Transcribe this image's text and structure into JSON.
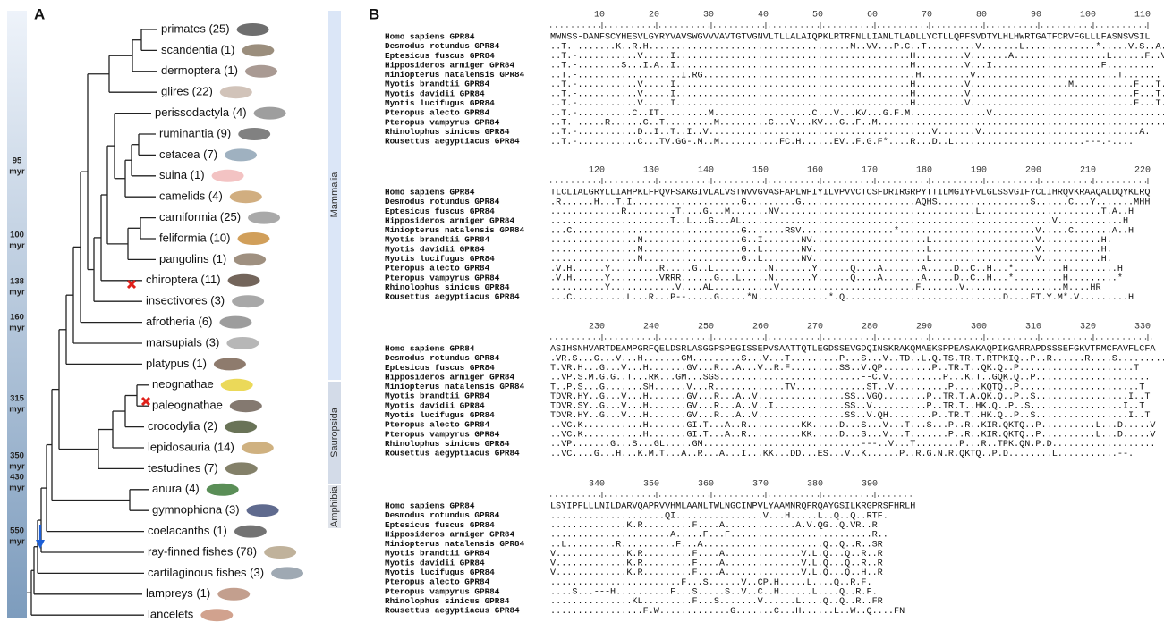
{
  "panel_a": {
    "label": "A",
    "time_labels": [
      [
        "95",
        "myr"
      ],
      [
        "100",
        "myr"
      ],
      [
        "138",
        "myr"
      ],
      [
        "160",
        "myr"
      ],
      [
        "315",
        "myr"
      ],
      [
        "350",
        "myr"
      ],
      [
        "430",
        "myr"
      ],
      [
        "550",
        "myr"
      ]
    ],
    "taxa": [
      "primates (25)",
      "scandentia (1)",
      "dermoptera (1)",
      "glires (22)",
      "perissodactyla (4)",
      "ruminantia (9)",
      "cetacea (7)",
      "suina (1)",
      "camelids (4)",
      "carniformia (25)",
      "feliformia (10)",
      "pangolins (1)",
      "chiroptera (11)",
      "insectivores (3)",
      "afrotheria (6)",
      "marsupials (3)",
      "platypus (1)",
      "neognathae",
      "paleognathae",
      "crocodylia (2)",
      "lepidosauria (14)",
      "testudines (7)",
      "anura (4)",
      "gymnophiona (3)",
      "coelacanths (1)",
      "ray-finned fishes (78)",
      "cartilaginous fishes (3)",
      "lampreys (1)",
      "lancelets"
    ],
    "clades": [
      "Mammalia",
      "Sauropsida",
      "Amphibia"
    ]
  },
  "panel_b": {
    "label": "B",
    "species": [
      "Homo sapiens GPR84",
      "Desmodus rotundus GPR84",
      "Eptesicus fuscus GPR84",
      "Hipposideros armiger GPR84",
      "Miniopterus natalensis GPR84",
      "Myotis brandtii GPR84",
      "Myotis davidii GPR84",
      "Myotis lucifugus GPR84",
      "Pteropus alecto GPR84",
      "Pteropus vampyrus GPR84",
      "Rhinolophus sinicus GPR84",
      "Rousettus aegyptiacus GPR84"
    ],
    "blocks": [
      {
        "ruler": [
          10,
          20,
          30,
          40,
          50,
          60,
          70,
          80,
          90,
          100,
          110
        ],
        "seqs": [
          "MWNSS-DANFSCYHESVLGYRYVAVSWGVVVAVTGTVGNVLTLLALAIQPKLRTRFNLLIANLTLADLLYCTLLQPFSVDTYLHLHWRTGATFCRVFGLLLFASNSVSIL",
          "..T.-.......K..R.H.....................................M..VV...P.C..T.........V.......L.............*.....V.S..A..F.",
          "..T.-...........V.....I...........................................H.........V.......A.................L......F..V",
          "..T.-........S...I.A..I...........................................H.........V...I....................F.........",
          "..T.-...................I.RG.......................................H.........V..........................T.......",
          "..T.-...........V.....I...........................................H.........V..................M...........F...T.",
          "..T.-...........V.....I...........................................H.........V..............................F...T.",
          "..T.-...........V.....I...........................................H.........V..............................F...T.",
          "..T.-..........C..IT.........M..................C...V...KV...G.F.M..............V.....................................",
          "..T.-.....R......C..T.........M.........C...V...KV...G..F..M......................................................",
          "..T.-...........D..I..T..I..V.........................................V.......V.............................A.",
          "..T.-...........C...TV.GG-.M..M...........FC.H......EV..F.G.F*....R...D..L........................---.-...."
        ]
      },
      {
        "ruler": [
          120,
          130,
          140,
          150,
          160,
          170,
          180,
          190,
          200,
          210,
          220
        ],
        "seqs": [
          "TLCLIALGRYLLIAHPKLFPQVFSAKGIVLALVSTWVVGVASFAPLWPIYILVPVVCTCSFDRIRGRPYTTILMGIYFVLGLSSVGIFYCLIHRQVKRAAQALDQYKLRQ",
          ".R......H...T.I....................G.........G.....................AQHS.................S......C...Y.......MHH",
          ".............R.........T....G...M.......NV....................................L......................T.A..H",
          "......................T..L...G...AL.........................................................V............H",
          "...C...............................G.......RSV.................*.........................V.....C.......A..H",
          "................N..................G..I.......NV.....................L...................V...........H.",
          "................N..................G..L.......NV.....................L...................V...........H.",
          "................N..................G..L.......NV.....................L...................V...........H.",
          ".V.H......Y.........R.....G..L..........N.......Y......Q....A.......A.....D..C..H...*.........H.........H",
          ".V.H......Y.........VRRR......G...L.....N.......Y......Q....A.......A.....D..C..H...*.........H.........*",
          "..........Y............V....AL...........V.........................F.......V..................M....HR",
          "...C..........L...R...P--.....G.....*N.............*.Q.............................D....FT.Y.M*.V.........H"
        ]
      },
      {
        "ruler": [
          230,
          240,
          250,
          260,
          270,
          280,
          290,
          300,
          310,
          320,
          330
        ],
        "seqs": [
          "ASIHSNHVARTDEAMPGRFQELDSRLASGGPSPEGISSEPVSAATTQTLEGDSSEVGDQINSKRAKQMAEKSPPEASAKAQPIKGARRAPDSSSEFGKVTRMCFAVFLCFA",
          ".VR.S...G...V...H.......GM.........S...V...T.........P...S...V..TD..L.Q.TS.TR.T.RTPKIQ..P..R......R....S.........",
          "T.VR.H...G...V...H.......GV...R...A...V..R.F.........SS..V.QP.........P..TR.T..QK.Q..P.....................T",
          "..VP.S.M.G.G..T...RK...GM...SGS..........................--C.V..........P...K.T..GQK.Q..P.....................",
          "T..P.S...G.......SH......V...R.............TV.............ST..V..........P.....KQTQ..P......................T",
          "TDVR.HY..G...V...H.......GV...R...A..V................SS..VGQ........P..TR.T.A.QK.Q..P..S.................I..T",
          "TDVR.SY..G...V...H.......GV...R...A..V..I.............SS..V..........P..TR.T..HK.Q..P..S.................I..T",
          "TDVR.HY..G...V...H.......GV...R...A..V................SS..V.QH........P..TR.T..HK.Q..P..S.................I..T",
          "..VC.K...........H.......GI.T...A..R..........KK.....D...S...V...T...S...P..R..KIR.QKTQ..P..........L...D.....V",
          "..VC.K...........H.......GI.T...A..R..........KK.....D...S...V...T.......P..R..KIR.QKTQ..P..........L...D.....V",
          "..VP.......G...S...GL.....GM.............................---..V...T........P...R..TPK.QN.P.D...................",
          "..VC....G...H...K.M.T...A..R...A...I...KK...DD...ES...V..K......P..R.G.N.R.QKTQ..P.D........L...........--."
        ]
      },
      {
        "ruler": [
          340,
          350,
          360,
          370,
          380,
          390
        ],
        "seqs": [
          "LSYIPFLLLNILDARVQAPRVVHMLAANLTWLNGCINPVLYAAMNRQFRQAYGSILKRGPRSFHRLH",
          ".....................QI................V...H.....L..Q..Q..RTF.",
          "..............K.R.........F....A.............A.V.QG..Q.VR..R",
          "......................A.....F...F..........................R..--",
          "..L.........R..........F...A......................Q..Q..R..SR",
          "V.............K.R.........F....A..............V.L.Q...Q..R..R",
          "V.............K.R.........F....A..............V.L.Q...Q..R..R",
          "V.............K.R.........F....A..............V.L.Q...Q..H..R",
          "........................F...S......V..CP.H.....L....Q..R.F.",
          "....S...---H..........F...S.....S..V..C..H......L....Q..R.F.",
          "...............KL.........F...S.......V......L....Q..Q..R..FR",
          ".................F.W.............G.......C...H......L..W..Q....FN"
        ]
      }
    ]
  }
}
